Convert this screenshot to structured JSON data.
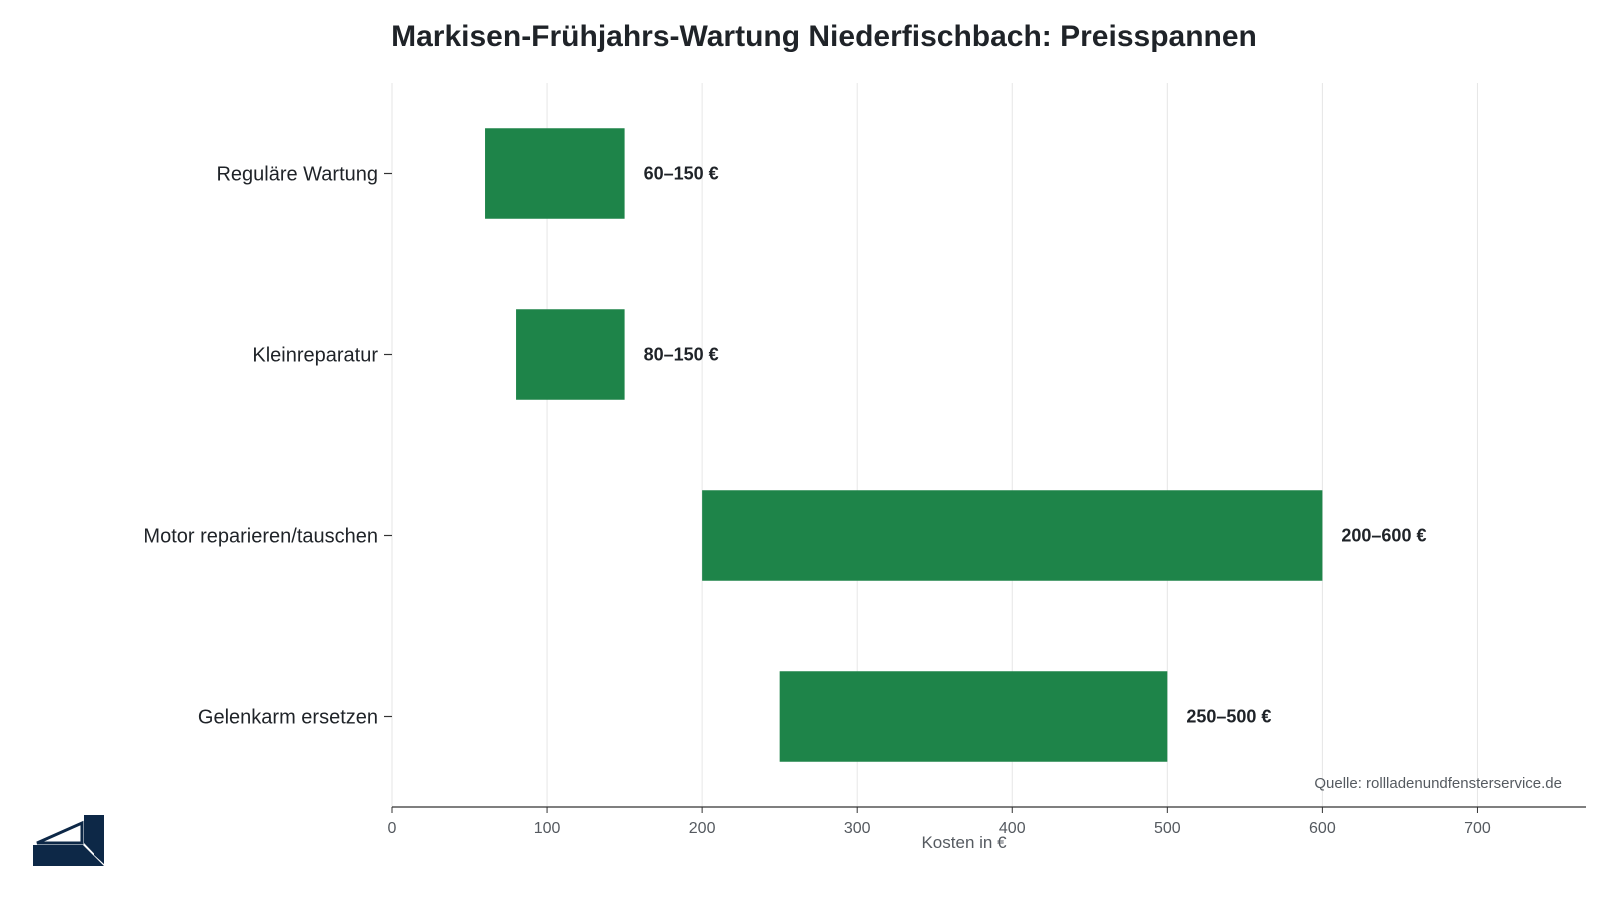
{
  "chart_data": {
    "type": "bar",
    "orientation": "horizontal-range",
    "title": "Markisen-Frühjahrs-Wartung Niederfischbach: Preisspannen",
    "xlabel": "Kosten in €",
    "ylabel": "",
    "xlim": [
      0,
      770
    ],
    "xticks": [
      0,
      100,
      200,
      300,
      400,
      500,
      600,
      700
    ],
    "grid": true,
    "bar_color": "#1e8449",
    "categories": [
      "Reguläre Wartung",
      "Kleinreparatur",
      "Motor reparieren/tauschen",
      "Gelenkarm ersetzen"
    ],
    "ranges": [
      {
        "low": 60,
        "high": 150,
        "label": "60–150 €"
      },
      {
        "low": 80,
        "high": 150,
        "label": "80–150 €"
      },
      {
        "low": 200,
        "high": 600,
        "label": "200–600 €"
      },
      {
        "low": 250,
        "high": 500,
        "label": "250–500 €"
      }
    ],
    "source": "Quelle: rollladenundfensterservice.de"
  },
  "logo": {
    "icon": "window-frame-logo-icon",
    "color": "#0d2847"
  }
}
